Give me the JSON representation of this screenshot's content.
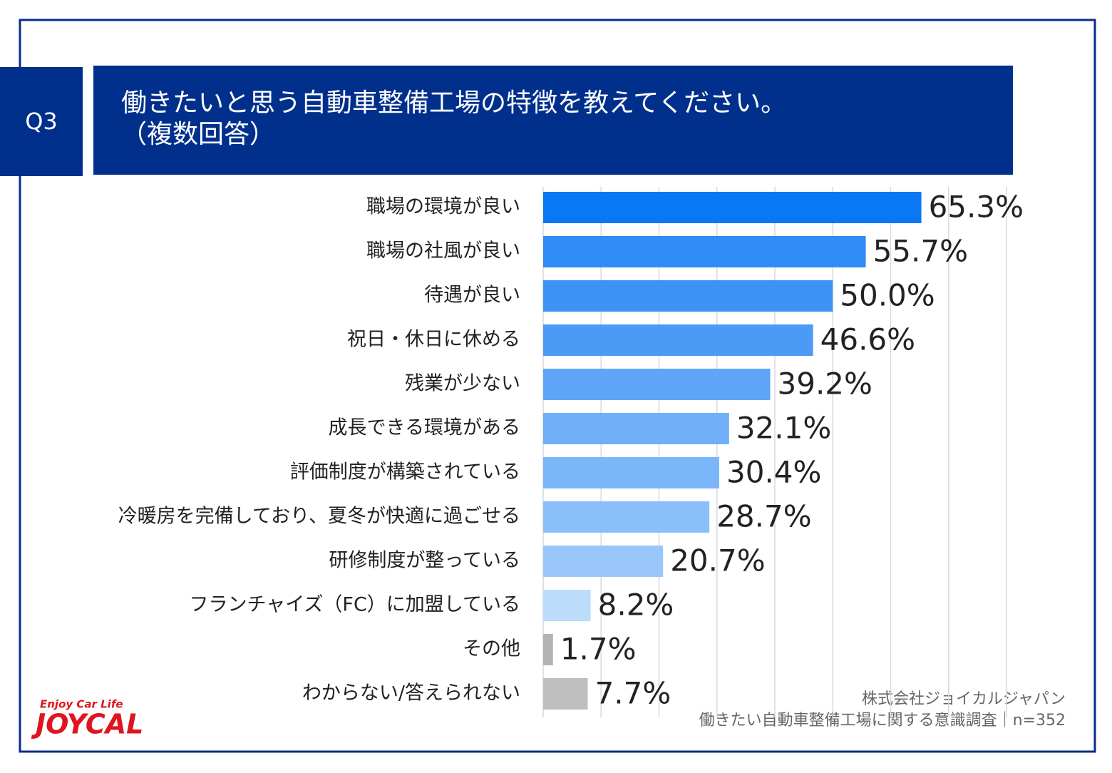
{
  "chart_data": {
    "type": "bar",
    "orientation": "horizontal",
    "question": "Q3",
    "title": "働きたいと思う自動車整備工場の特徴を教えてください。",
    "subtitle": "（複数回答）",
    "categories": [
      "職場の環境が良い",
      "職場の社風が良い",
      "待遇が良い",
      "祝日・休日に休める",
      "残業が少ない",
      "成長できる環境がある",
      "評価制度が構築されている",
      "冷暖房を完備しており、夏冬が快適に過ごせる",
      "研修制度が整っている",
      "フランチャイズ（FC）に加盟している",
      "その他",
      "わからない/答えられない"
    ],
    "values": [
      65.3,
      55.7,
      50.0,
      46.6,
      39.2,
      32.1,
      30.4,
      28.7,
      20.7,
      8.2,
      1.7,
      7.7
    ],
    "value_labels": [
      "65.3%",
      "55.7%",
      "50.0%",
      "46.6%",
      "39.2%",
      "32.1%",
      "30.4%",
      "28.7%",
      "20.7%",
      "8.2%",
      "1.7%",
      "7.7%"
    ],
    "colors": [
      "#0a78f5",
      "#2f8bf5",
      "#3d92f5",
      "#4a9af6",
      "#5ea5f7",
      "#6fb0f8",
      "#7ab6f8",
      "#8abff9",
      "#99c7fa",
      "#bcdcfc",
      "#b3b3b3",
      "#bfbfbf"
    ],
    "xlim": [
      0,
      80
    ],
    "grid": true,
    "source": [
      "株式会社ジョイカルジャパン",
      "働きたい自動車整備工場に関する意識調査｜n=352"
    ],
    "logo": {
      "tagline": "Enjoy Car Life",
      "name": "JOYCAL"
    }
  }
}
